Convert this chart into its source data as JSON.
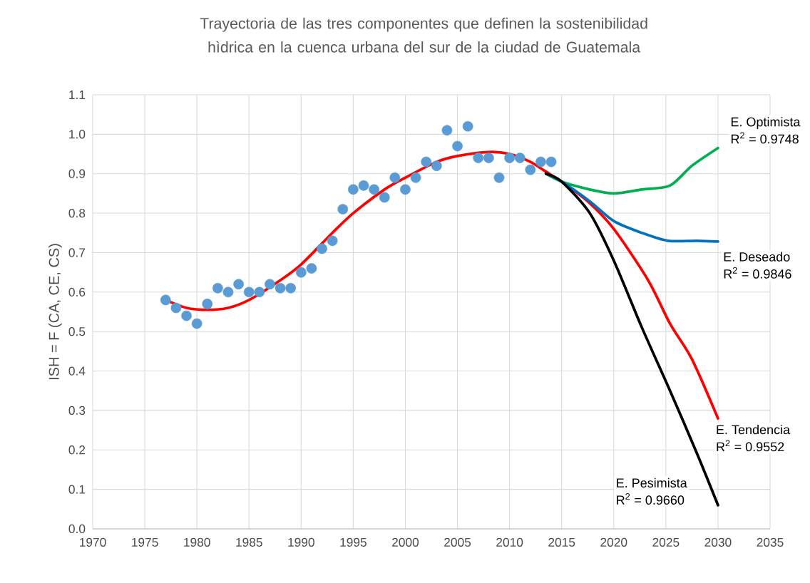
{
  "chart_data": {
    "type": "line",
    "title": "Trayectoria de las tres componentes que definen la sostenibilidad hìdrica en la cuenca urbana del sur de la ciudad de Guatemala",
    "ylabel": "ISH = F (CA, CE, CS)",
    "xlim": [
      1970,
      2035
    ],
    "xticks": [
      1970,
      1975,
      1980,
      1985,
      1990,
      1995,
      2000,
      2005,
      2010,
      2015,
      2020,
      2025,
      2030,
      2035
    ],
    "ylim": [
      0,
      1.1
    ],
    "yticks": [
      {
        "value": 0,
        "label": "0.0"
      },
      {
        "value": 0.1,
        "label": "0.1"
      },
      {
        "value": 0.2,
        "label": "0.2"
      },
      {
        "value": 0.3,
        "label": "0.3"
      },
      {
        "value": 0.4,
        "label": "0.4"
      },
      {
        "value": 0.5,
        "label": "0.5"
      },
      {
        "value": 0.6,
        "label": "0.6"
      },
      {
        "value": 0.7,
        "label": "0.7"
      },
      {
        "value": 0.8,
        "label": "0.8"
      },
      {
        "value": 0.9,
        "label": "0.9"
      },
      {
        "value": 1.0,
        "label": "1.0"
      },
      {
        "value": 1.1,
        "label": "1.1"
      }
    ],
    "grid": true,
    "series": [
      {
        "type": "scatter",
        "marker": "circle",
        "color": "#5b9bd5",
        "x": [
          1977,
          1978,
          1979,
          1980,
          1981,
          1982,
          1983,
          1984,
          1985,
          1986,
          1987,
          1988,
          1989,
          1990,
          1991,
          1992,
          1993,
          1994,
          1995,
          1996,
          1997,
          1998,
          1999,
          2000,
          2001,
          2002,
          2003,
          2004,
          2005,
          2006,
          2007,
          2008,
          2009,
          2010,
          2011,
          2012,
          2013,
          2014
        ],
        "values": [
          0.58,
          0.56,
          0.54,
          0.52,
          0.57,
          0.61,
          0.6,
          0.62,
          0.6,
          0.6,
          0.62,
          0.61,
          0.61,
          0.65,
          0.66,
          0.71,
          0.73,
          0.81,
          0.86,
          0.87,
          0.86,
          0.84,
          0.89,
          0.86,
          0.89,
          0.93,
          0.92,
          1.01,
          0.97,
          1.02,
          0.94,
          0.94,
          0.89,
          0.94,
          0.94,
          0.91,
          0.93,
          0.93
        ]
      },
      {
        "name": "E. Tendencia",
        "color": "#ff0000",
        "x": [
          1977,
          1979,
          1981,
          1983,
          1985,
          1988,
          1990,
          1993,
          1995,
          1998,
          2000,
          2003,
          2005,
          2008,
          2010,
          2012,
          2013.5,
          2015,
          2017.5,
          2020,
          2023.3,
          2025.4,
          2027.5,
          2030
        ],
        "values": [
          0.58,
          0.56,
          0.555,
          0.56,
          0.58,
          0.63,
          0.67,
          0.75,
          0.8,
          0.86,
          0.89,
          0.93,
          0.945,
          0.955,
          0.95,
          0.93,
          0.905,
          0.88,
          0.83,
          0.76,
          0.63,
          0.52,
          0.43,
          0.28
        ]
      },
      {
        "name": "E. Optimista",
        "color": "#00b050",
        "x": [
          2013.5,
          2015,
          2017.7,
          2020,
          2022.7,
          2025.4,
          2027.5,
          2030
        ],
        "values": [
          0.9,
          0.88,
          0.86,
          0.85,
          0.86,
          0.87,
          0.92,
          0.965
        ]
      },
      {
        "name": "E. Deseado",
        "color": "#0070c0",
        "x": [
          2013.5,
          2015,
          2017.7,
          2020,
          2022.7,
          2025.2,
          2028,
          2030
        ],
        "values": [
          0.9,
          0.88,
          0.83,
          0.78,
          0.75,
          0.73,
          0.73,
          0.728
        ]
      },
      {
        "name": "E. Pesimista",
        "color": "#000000",
        "x": [
          2013.5,
          2015,
          2017.7,
          2020,
          2022.7,
          2025.4,
          2028,
          2030
        ],
        "values": [
          0.9,
          0.88,
          0.8,
          0.68,
          0.51,
          0.35,
          0.19,
          0.06
        ]
      }
    ],
    "annotations": [
      "R$^{2}$ = 0.9552",
      "R$^{2}$ = 0.9748",
      "R$^{2}$ = 0.9846",
      "R$^{2}$ = 0.9660"
    ]
  }
}
